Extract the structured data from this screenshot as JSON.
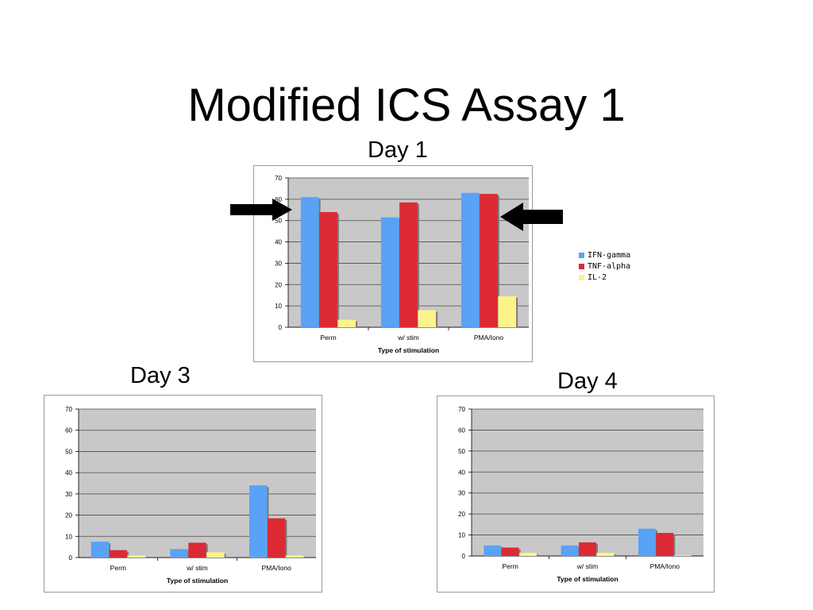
{
  "slide": {
    "title": "Modified ICS Assay 1"
  },
  "colors": {
    "IFN-gamma": "#5aa2f5",
    "TNF-alpha": "#dc2a35",
    "IL-2": "#fdf38b",
    "plot_bg": "#c8c8c8"
  },
  "legend": {
    "entries": [
      "IFN-gamma",
      "TNF-alpha",
      "IL-2"
    ]
  },
  "chart_data": [
    {
      "type": "bar",
      "title": "Day 1",
      "categories": [
        "Perm",
        "w/ stim",
        "PMA/Iono"
      ],
      "series": [
        {
          "name": "IFN-gamma",
          "values": [
            61,
            51.5,
            63
          ]
        },
        {
          "name": "TNF-alpha",
          "values": [
            54,
            58.5,
            62.5
          ]
        },
        {
          "name": "IL-2",
          "values": [
            3.5,
            8,
            14.5
          ]
        }
      ],
      "xlabel": "Type of stimulation",
      "ylabel": "",
      "ylim": [
        0,
        70
      ],
      "yticks": [
        "0",
        "10",
        "20",
        "30",
        "40",
        "50",
        "60",
        "70"
      ],
      "grid": true
    },
    {
      "type": "bar",
      "title": "Day 3",
      "categories": [
        "Perm",
        "w/ stim",
        "PMA/Iono"
      ],
      "series": [
        {
          "name": "IFN-gamma",
          "values": [
            7.5,
            4,
            34
          ]
        },
        {
          "name": "TNF-alpha",
          "values": [
            3.5,
            7,
            18.5
          ]
        },
        {
          "name": "IL-2",
          "values": [
            1,
            2.5,
            1
          ]
        }
      ],
      "xlabel": "Type of stimulation",
      "ylabel": "",
      "ylim": [
        0,
        70
      ],
      "yticks": [
        "0",
        "10",
        "20",
        "30",
        "40",
        "50",
        "60",
        "70"
      ],
      "grid": true
    },
    {
      "type": "bar",
      "title": "Day 4",
      "categories": [
        "Perm",
        "w/ stim",
        "PMA/Iono"
      ],
      "series": [
        {
          "name": "IFN-gamma",
          "values": [
            5,
            5,
            13
          ]
        },
        {
          "name": "TNF-alpha",
          "values": [
            4,
            6.5,
            11
          ]
        },
        {
          "name": "IL-2",
          "values": [
            1.5,
            1.5,
            0.3
          ]
        }
      ],
      "xlabel": "Type of stimulation",
      "ylabel": "",
      "ylim": [
        0,
        70
      ],
      "yticks": [
        "0",
        "10",
        "20",
        "30",
        "40",
        "50",
        "60",
        "70"
      ],
      "grid": true
    }
  ]
}
